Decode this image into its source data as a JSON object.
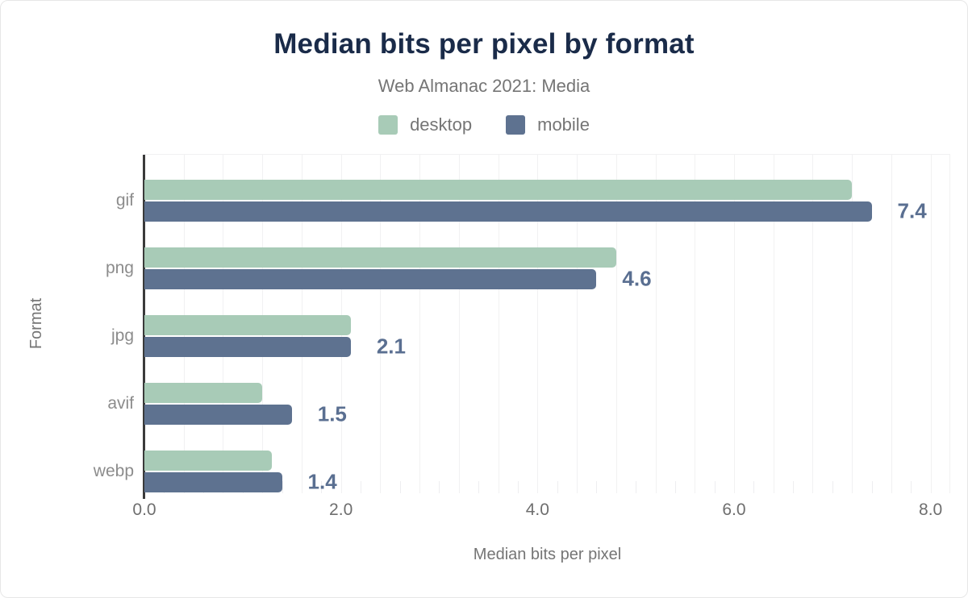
{
  "chart_data": {
    "type": "bar",
    "orientation": "horizontal",
    "title": "Median bits per pixel by format",
    "subtitle": "Web Almanac 2021: Media",
    "categories": [
      "gif",
      "png",
      "jpg",
      "avif",
      "webp"
    ],
    "series": [
      {
        "name": "desktop",
        "color": "#a8cbb7",
        "values": [
          7.2,
          4.8,
          2.1,
          1.2,
          1.3
        ]
      },
      {
        "name": "mobile",
        "color": "#5e7290",
        "values": [
          7.4,
          4.6,
          2.1,
          1.5,
          1.4
        ]
      }
    ],
    "bar_labels": {
      "series": "mobile",
      "values": [
        "7.4",
        "4.6",
        "2.1",
        "1.5",
        "1.4"
      ]
    },
    "xlabel": "Median bits per pixel",
    "ylabel": "Format",
    "xlim": [
      0,
      8.2
    ],
    "x_tick_values": [
      0,
      2,
      4,
      6,
      8
    ],
    "x_tick_labels": [
      "0.0",
      "2.0",
      "4.0",
      "6.0",
      "8.0"
    ],
    "gridline_step": 0.4,
    "minor_tick_step": 0.2,
    "grid": true,
    "legend_position": "top"
  },
  "colors": {
    "title": "#1a2b49",
    "muted_text": "#757575",
    "category_label": "#8c8c8c",
    "tick_label": "#6e6e6e",
    "value_label": "#5a6f91",
    "axis_line": "#3a3a3a",
    "gridline": "#f1f1f2",
    "background": "#ffffff"
  }
}
